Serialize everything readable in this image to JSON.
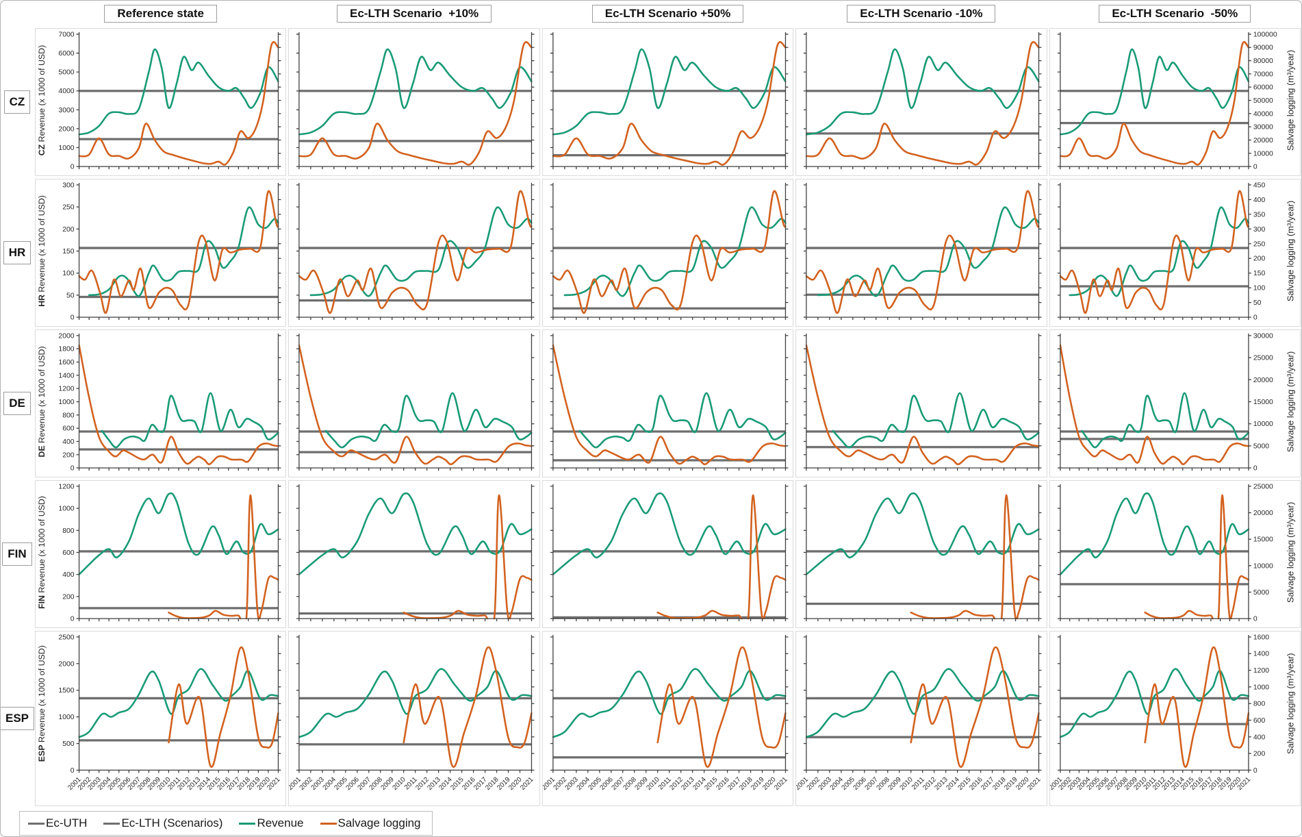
{
  "header": {
    "columns": [
      "Reference state",
      "Ec-LTH Scenario  +10%",
      "Ec-LTH Scenario +50%",
      "Ec-LTH Scenario -10%",
      "Ec-LTH Scenario  -50%"
    ]
  },
  "row_labels": [
    "CZ",
    "HR",
    "DE",
    "FIN",
    "ESP"
  ],
  "legend": {
    "items": [
      {
        "label": "Ec-UTH",
        "color": "#6F6F6F"
      },
      {
        "label": "Ec-LTH (Scenarios)",
        "color": "#6F6F6F"
      },
      {
        "label": "Revenue",
        "color": "#189A76"
      },
      {
        "label": "Salvage logging",
        "color": "#D2611E"
      }
    ]
  },
  "colors": {
    "revenue": "#189A76",
    "salvage": "#D2611E",
    "threshold": "#6E6E6E",
    "axis": "#3F3F3F"
  },
  "x_years": [
    2001,
    2002,
    2003,
    2004,
    2005,
    2006,
    2007,
    2008,
    2009,
    2010,
    2011,
    2012,
    2013,
    2014,
    2015,
    2016,
    2017,
    2018,
    2019,
    2020,
    2021
  ],
  "chart_data": [
    {
      "type": "line",
      "country": "CZ",
      "left_axis": {
        "title_bold": "CZ",
        "title_rest": " Revenue (x 1000 of USD)",
        "min": 0,
        "max": 7000,
        "step": 1000
      },
      "right_axis": {
        "title": "Salvage logging (m³/year)",
        "min": 0,
        "max": 100000,
        "step": 10000
      },
      "thresholds": {
        "ec_uth": 4000,
        "ec_lth_by_scenario": [
          1450,
          1350,
          600,
          1750,
          2300
        ]
      },
      "revenue": [
        [
          2001,
          1700
        ],
        [
          2002,
          1800
        ],
        [
          2003,
          2150
        ],
        [
          2004,
          2800
        ],
        [
          2005,
          2870
        ],
        [
          2006,
          2780
        ],
        [
          2007,
          3050
        ],
        [
          2008,
          5000
        ],
        [
          2008.6,
          6200
        ],
        [
          2009.3,
          5200
        ],
        [
          2010,
          3100
        ],
        [
          2010.8,
          4400
        ],
        [
          2011.5,
          5800
        ],
        [
          2012.3,
          5100
        ],
        [
          2013,
          5500
        ],
        [
          2014,
          4800
        ],
        [
          2015,
          4200
        ],
        [
          2016,
          4000
        ],
        [
          2016.8,
          4150
        ],
        [
          2017.6,
          3600
        ],
        [
          2018.3,
          3100
        ],
        [
          2019.2,
          3900
        ],
        [
          2020,
          5250
        ],
        [
          2021,
          4500
        ]
      ],
      "salvage": [
        [
          2001,
          7900
        ],
        [
          2002,
          9000
        ],
        [
          2003,
          21300
        ],
        [
          2004,
          9100
        ],
        [
          2005,
          8000
        ],
        [
          2006,
          6200
        ],
        [
          2007,
          14000
        ],
        [
          2007.7,
          32400
        ],
        [
          2008.6,
          20000
        ],
        [
          2009.5,
          11400
        ],
        [
          2010.5,
          8600
        ],
        [
          2011.5,
          6300
        ],
        [
          2012.5,
          4300
        ],
        [
          2013.5,
          2400
        ],
        [
          2014.3,
          2100
        ],
        [
          2015,
          3700
        ],
        [
          2015.7,
          1600
        ],
        [
          2016.5,
          11000
        ],
        [
          2017.2,
          26500
        ],
        [
          2018,
          21500
        ],
        [
          2018.8,
          30000
        ],
        [
          2019.5,
          50000
        ],
        [
          2020.3,
          91400
        ],
        [
          2021,
          90000
        ]
      ]
    },
    {
      "type": "line",
      "country": "HR",
      "left_axis": {
        "title_bold": "HR",
        "title_rest": " Revenue (x 1000 of USD)",
        "min": 0,
        "max": 300,
        "step": 50
      },
      "right_axis": {
        "title": "Salvage logging (m³/year)",
        "min": 0,
        "max": 450,
        "step": 50
      },
      "thresholds": {
        "ec_uth": 157,
        "ec_lth_by_scenario": [
          46,
          38,
          20,
          51,
          70
        ]
      },
      "revenue": [
        [
          2002,
          50
        ],
        [
          2003,
          52
        ],
        [
          2004,
          63
        ],
        [
          2005,
          92
        ],
        [
          2005.8,
          88
        ],
        [
          2007,
          48
        ],
        [
          2008,
          100
        ],
        [
          2008.5,
          117
        ],
        [
          2009.4,
          86
        ],
        [
          2010.2,
          85
        ],
        [
          2011,
          103
        ],
        [
          2012,
          105
        ],
        [
          2013,
          108
        ],
        [
          2013.8,
          170
        ],
        [
          2014.6,
          158
        ],
        [
          2015.4,
          113
        ],
        [
          2016.2,
          127
        ],
        [
          2017,
          158
        ],
        [
          2018,
          248
        ],
        [
          2019,
          210
        ],
        [
          2019.8,
          203
        ],
        [
          2020.6,
          223
        ],
        [
          2021,
          214
        ]
      ],
      "salvage": [
        [
          2001,
          140
        ],
        [
          2001.6,
          128
        ],
        [
          2002.3,
          158
        ],
        [
          2003.1,
          83
        ],
        [
          2003.7,
          15
        ],
        [
          2004.5,
          128
        ],
        [
          2005.2,
          71
        ],
        [
          2006,
          125
        ],
        [
          2006.5,
          93
        ],
        [
          2007.2,
          165
        ],
        [
          2008,
          33
        ],
        [
          2009,
          83
        ],
        [
          2009.7,
          100
        ],
        [
          2010.4,
          90
        ],
        [
          2011.2,
          41
        ],
        [
          2012,
          45
        ],
        [
          2013,
          255
        ],
        [
          2013.7,
          258
        ],
        [
          2014.6,
          125
        ],
        [
          2015.4,
          230
        ],
        [
          2016.2,
          220
        ],
        [
          2017.2,
          230
        ],
        [
          2018.2,
          233
        ],
        [
          2019.2,
          237
        ],
        [
          2020,
          428
        ],
        [
          2020.8,
          320
        ],
        [
          2021,
          308
        ]
      ]
    },
    {
      "type": "line",
      "country": "DE",
      "left_axis": {
        "title_bold": "DE",
        "title_rest": " Revenue (x 1000 of USD)",
        "min": 0,
        "max": 2000,
        "step": 200
      },
      "right_axis": {
        "title": "Salvage logging (m³/year)",
        "min": 0,
        "max": 30000,
        "step": 5000
      },
      "thresholds": {
        "ec_uth": 550,
        "ec_lth_by_scenario": [
          280,
          238,
          115,
          315,
          437
        ]
      },
      "revenue": [
        [
          2003.3,
          560
        ],
        [
          2004,
          420
        ],
        [
          2004.7,
          310
        ],
        [
          2005.5,
          430
        ],
        [
          2006.3,
          475
        ],
        [
          2007,
          455
        ],
        [
          2007.6,
          415
        ],
        [
          2008.3,
          650
        ],
        [
          2009,
          555
        ],
        [
          2009.6,
          600
        ],
        [
          2010.2,
          1090
        ],
        [
          2011,
          800
        ],
        [
          2011.4,
          710
        ],
        [
          2012,
          720
        ],
        [
          2012.6,
          700
        ],
        [
          2013.3,
          555
        ],
        [
          2014.2,
          1130
        ],
        [
          2015.2,
          560
        ],
        [
          2016.2,
          880
        ],
        [
          2017,
          615
        ],
        [
          2017.8,
          740
        ],
        [
          2018.5,
          700
        ],
        [
          2019.3,
          620
        ],
        [
          2020,
          430
        ],
        [
          2021,
          530
        ]
      ],
      "salvage": [
        [
          2001,
          27800
        ],
        [
          2002,
          16000
        ],
        [
          2003,
          7000
        ],
        [
          2004,
          3700
        ],
        [
          2004.7,
          2600
        ],
        [
          2005.4,
          3950
        ],
        [
          2006,
          3450
        ],
        [
          2007,
          2200
        ],
        [
          2007.6,
          1950
        ],
        [
          2008.4,
          3000
        ],
        [
          2009.3,
          1280
        ],
        [
          2010.2,
          7050
        ],
        [
          2011,
          3450
        ],
        [
          2011.8,
          980
        ],
        [
          2012.5,
          1900
        ],
        [
          2013,
          2550
        ],
        [
          2013.6,
          1800
        ],
        [
          2014.1,
          830
        ],
        [
          2014.9,
          2500
        ],
        [
          2015.6,
          2550
        ],
        [
          2016.3,
          1900
        ],
        [
          2017.3,
          1880
        ],
        [
          2018,
          1500
        ],
        [
          2019,
          4800
        ],
        [
          2019.8,
          5550
        ],
        [
          2020.5,
          5100
        ],
        [
          2021,
          4950
        ]
      ]
    },
    {
      "type": "line",
      "country": "FIN",
      "left_axis": {
        "title_bold": "FIN",
        "title_rest": " Revenue (x 1000 of USD)",
        "min": 0,
        "max": 1200,
        "step": 200
      },
      "right_axis": {
        "title": "Salvage logging (m³/year)",
        "min": 0,
        "max": 25000,
        "step": 5000
      },
      "thresholds": {
        "ec_uth": 610,
        "ec_lth_by_scenario": [
          95,
          47,
          11,
          134,
          312
        ]
      },
      "revenue": [
        [
          2001,
          400
        ],
        [
          2002,
          490
        ],
        [
          2003,
          575
        ],
        [
          2004,
          630
        ],
        [
          2004.8,
          555
        ],
        [
          2006,
          700
        ],
        [
          2007,
          950
        ],
        [
          2008,
          1090
        ],
        [
          2009,
          955
        ],
        [
          2010,
          1130
        ],
        [
          2010.8,
          1060
        ],
        [
          2012,
          680
        ],
        [
          2013,
          585
        ],
        [
          2014.3,
          830
        ],
        [
          2015,
          760
        ],
        [
          2015.8,
          585
        ],
        [
          2016.8,
          700
        ],
        [
          2017.5,
          600
        ],
        [
          2018.3,
          615
        ],
        [
          2019.2,
          855
        ],
        [
          2020,
          765
        ],
        [
          2021,
          810
        ]
      ],
      "salvage": [
        [
          2010,
          1150
        ],
        [
          2010.7,
          500
        ],
        [
          2011.5,
          120
        ],
        [
          2012.5,
          100
        ],
        [
          2013.4,
          200
        ],
        [
          2014.1,
          620
        ],
        [
          2014.7,
          1460
        ],
        [
          2015.5,
          720
        ],
        [
          2016.3,
          520
        ],
        [
          2017,
          580
        ],
        [
          2017.8,
          100
        ],
        [
          2018.2,
          23300
        ],
        [
          2018.9,
          1700
        ],
        [
          2019.3,
          1350
        ],
        [
          2020,
          7500
        ],
        [
          2020.6,
          7700
        ],
        [
          2021,
          7300
        ]
      ]
    },
    {
      "type": "line",
      "country": "ESP",
      "left_axis": {
        "title_bold": "ESP",
        "title_rest": " Revenue (x 1000 of USD)",
        "min": 0,
        "max": 2500,
        "step": 500
      },
      "right_axis": {
        "title": "Salvage logging (m³/year)",
        "min": 0,
        "max": 1600,
        "step": 200
      },
      "thresholds": {
        "ec_uth": 1350,
        "ec_lth_by_scenario": [
          560,
          485,
          240,
          620,
          865
        ]
      },
      "revenue": [
        [
          2001,
          620
        ],
        [
          2002,
          720
        ],
        [
          2003.3,
          1050
        ],
        [
          2004.2,
          1000
        ],
        [
          2005,
          1080
        ],
        [
          2006,
          1150
        ],
        [
          2007,
          1420
        ],
        [
          2008.2,
          1840
        ],
        [
          2009,
          1680
        ],
        [
          2010.2,
          1060
        ],
        [
          2011,
          1390
        ],
        [
          2012,
          1520
        ],
        [
          2013.2,
          1900
        ],
        [
          2014.4,
          1600
        ],
        [
          2015.6,
          1310
        ],
        [
          2016.3,
          1390
        ],
        [
          2017.2,
          1560
        ],
        [
          2018,
          1860
        ],
        [
          2019.2,
          1340
        ],
        [
          2020.2,
          1410
        ],
        [
          2021,
          1390
        ]
      ],
      "salvage": [
        [
          2010,
          333
        ],
        [
          2011,
          1030
        ],
        [
          2011.8,
          557
        ],
        [
          2013.1,
          870
        ],
        [
          2014.2,
          48
        ],
        [
          2015.2,
          450
        ],
        [
          2016.2,
          890
        ],
        [
          2017.2,
          1470
        ],
        [
          2018,
          1160
        ],
        [
          2019,
          390
        ],
        [
          2019.8,
          275
        ],
        [
          2020.4,
          330
        ],
        [
          2021,
          685
        ]
      ]
    }
  ]
}
